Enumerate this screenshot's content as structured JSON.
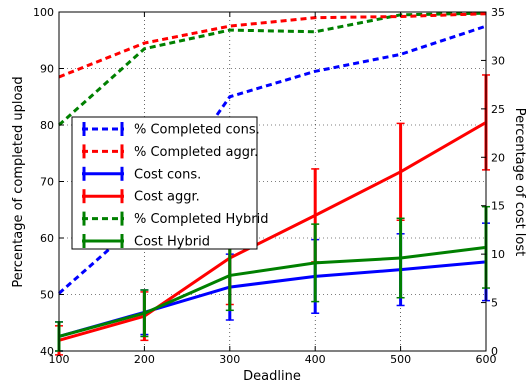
{
  "chart_data": {
    "type": "line",
    "title": "",
    "xlabel": "Deadline",
    "ylabel": "Percentage of completed upload",
    "y2label": "Percentage of cost lost",
    "x": [
      100,
      200,
      300,
      400,
      500,
      600
    ],
    "xlim": [
      100,
      600
    ],
    "ylim": [
      40,
      100
    ],
    "y2lim": [
      0,
      35
    ],
    "x_ticks": [
      "100",
      "200",
      "300",
      "400",
      "500",
      "600"
    ],
    "y_ticks": [
      "40",
      "50",
      "60",
      "70",
      "80",
      "90",
      "100"
    ],
    "y2_ticks": [
      "0",
      "5",
      "10",
      "15",
      "20",
      "25",
      "30",
      "35"
    ],
    "grid": true,
    "legend_position": "center-left",
    "series": [
      {
        "name": "% Completed cons.",
        "axis": "left",
        "color": "#0000ff",
        "dash": true,
        "values": [
          50.2,
          63.5,
          85.0,
          89.5,
          92.5,
          97.5
        ],
        "err": [
          0,
          0,
          0,
          0,
          0,
          0
        ]
      },
      {
        "name": "% Completed aggr.",
        "axis": "left",
        "color": "#ff0000",
        "dash": true,
        "values": [
          88.5,
          94.5,
          97.5,
          99.0,
          99.2,
          99.7
        ],
        "err": [
          0,
          0,
          0,
          0,
          0,
          0
        ]
      },
      {
        "name": "Cost cons.",
        "axis": "right",
        "color": "#0000ff",
        "dash": false,
        "values": [
          1.5,
          4.0,
          6.6,
          7.7,
          8.4,
          9.2
        ],
        "err": [
          1.5,
          2.3,
          3.4,
          3.8,
          3.7,
          4.0
        ]
      },
      {
        "name": "Cost aggr.",
        "axis": "right",
        "color": "#ff0000",
        "dash": false,
        "values": [
          1.1,
          3.6,
          9.6,
          14.0,
          18.5,
          23.6
        ],
        "err": [
          1.5,
          2.5,
          4.8,
          4.8,
          5.0,
          4.9
        ]
      },
      {
        "name": "% Completed Hybrid",
        "axis": "left",
        "color": "#008000",
        "dash": true,
        "values": [
          80.0,
          93.5,
          96.8,
          96.5,
          99.5,
          99.8
        ],
        "err": [
          0,
          0,
          0,
          0,
          0,
          0
        ]
      },
      {
        "name": "Cost Hybrid",
        "axis": "right",
        "color": "#008000",
        "dash": false,
        "values": [
          1.5,
          3.9,
          7.8,
          9.1,
          9.6,
          10.7
        ],
        "err": [
          1.5,
          2.4,
          3.6,
          4.0,
          4.1,
          4.2
        ]
      }
    ]
  }
}
